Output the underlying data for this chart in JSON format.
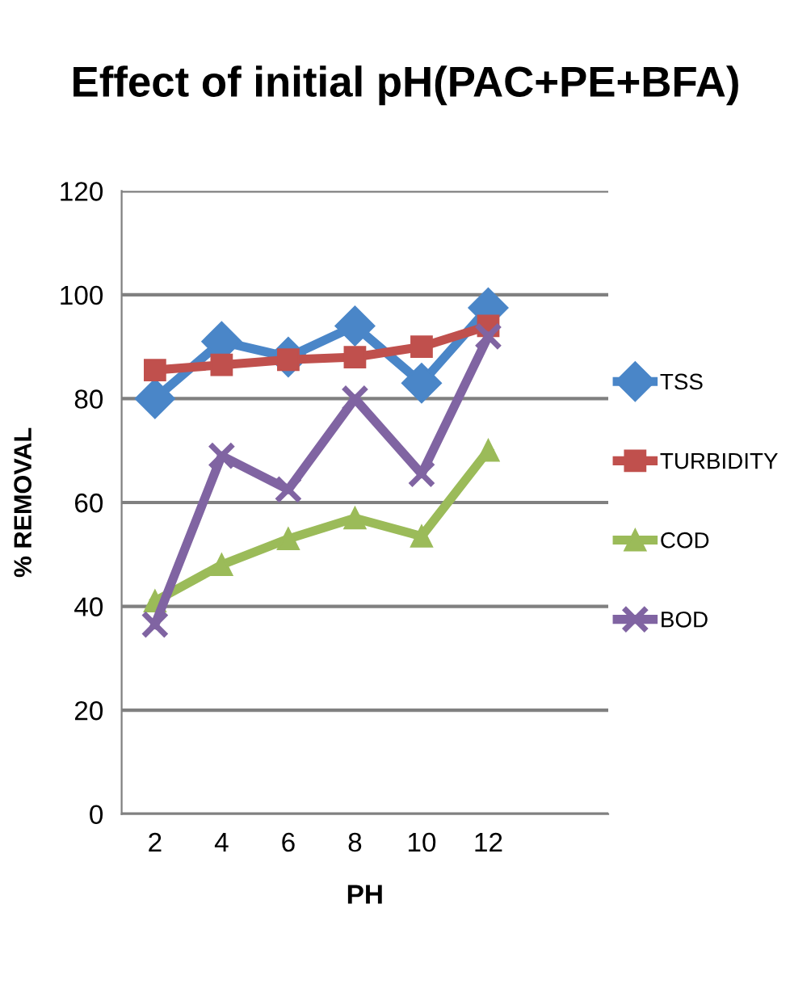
{
  "chart_data": {
    "type": "line",
    "title": "Effect of initial pH(PAC+PE+BFA)",
    "xlabel": "PH",
    "ylabel": "% REMOVAL",
    "categories": [
      "2",
      "4",
      "6",
      "8",
      "10",
      "12"
    ],
    "series": [
      {
        "name": "TSS",
        "color": "#4a86c8",
        "marker": "diamond",
        "values": [
          80,
          91,
          88,
          94,
          83,
          97.5
        ]
      },
      {
        "name": "TURBIDITY",
        "color": "#c0504d",
        "marker": "square",
        "values": [
          85.5,
          86.5,
          87.5,
          88,
          90,
          94
        ]
      },
      {
        "name": "COD",
        "color": "#9bbb59",
        "marker": "triangle",
        "values": [
          41,
          48,
          53,
          57,
          53.5,
          70
        ]
      },
      {
        "name": "BOD",
        "color": "#8064a2",
        "marker": "cross",
        "values": [
          36.5,
          69,
          62.5,
          80,
          65.5,
          92
        ]
      }
    ],
    "ylim": [
      0,
      120
    ],
    "yticks": [
      0,
      20,
      40,
      60,
      80,
      100,
      120
    ],
    "grid": "y",
    "legend": "right",
    "line_style": "solid"
  }
}
